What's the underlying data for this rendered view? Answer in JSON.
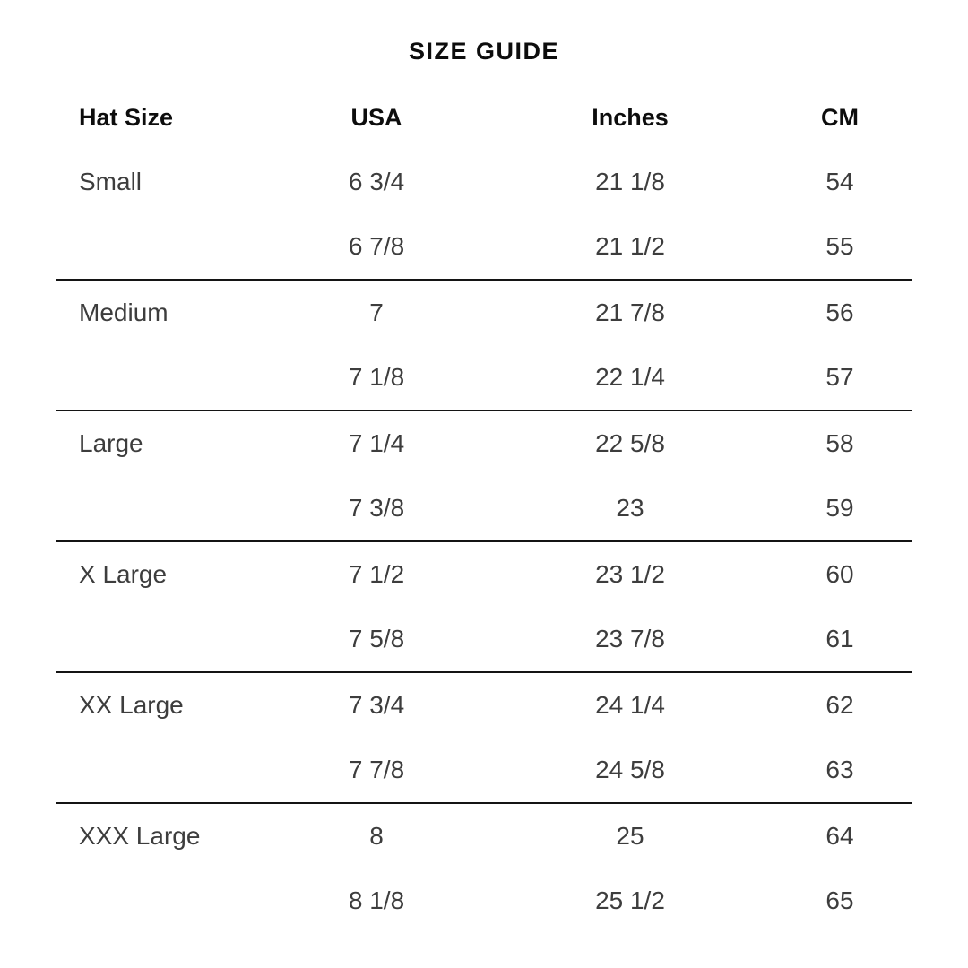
{
  "page": {
    "title": "SIZE GUIDE"
  },
  "colors": {
    "heading": "#0d0d0d",
    "body": "#3d3d3d",
    "divider": "#141414",
    "background": "#ffffff"
  },
  "table": {
    "headers": {
      "hat_size": "Hat Size",
      "usa": "USA",
      "inches": "Inches",
      "cm": "CM"
    },
    "groups": [
      {
        "rows": [
          {
            "hat_size": "Small",
            "usa": "6 3/4",
            "inches": "21 1/8",
            "cm": "54"
          },
          {
            "hat_size": "",
            "usa": "6 7/8",
            "inches": "21 1/2",
            "cm": "55"
          }
        ]
      },
      {
        "rows": [
          {
            "hat_size": "Medium",
            "usa": "7",
            "inches": "21 7/8",
            "cm": "56"
          },
          {
            "hat_size": "",
            "usa": "7 1/8",
            "inches": "22 1/4",
            "cm": "57"
          }
        ]
      },
      {
        "rows": [
          {
            "hat_size": "Large",
            "usa": "7 1/4",
            "inches": "22 5/8",
            "cm": "58"
          },
          {
            "hat_size": "",
            "usa": "7 3/8",
            "inches": "23",
            "cm": "59"
          }
        ]
      },
      {
        "rows": [
          {
            "hat_size": "X Large",
            "usa": "7 1/2",
            "inches": "23 1/2",
            "cm": "60"
          },
          {
            "hat_size": "",
            "usa": "7 5/8",
            "inches": "23 7/8",
            "cm": "61"
          }
        ]
      },
      {
        "rows": [
          {
            "hat_size": "XX Large",
            "usa": "7 3/4",
            "inches": "24 1/4",
            "cm": "62"
          },
          {
            "hat_size": "",
            "usa": "7 7/8",
            "inches": "24 5/8",
            "cm": "63"
          }
        ]
      },
      {
        "rows": [
          {
            "hat_size": "XXX Large",
            "usa": "8",
            "inches": "25",
            "cm": "64"
          },
          {
            "hat_size": "",
            "usa": "8 1/8",
            "inches": "25 1/2",
            "cm": "65"
          }
        ]
      }
    ]
  }
}
